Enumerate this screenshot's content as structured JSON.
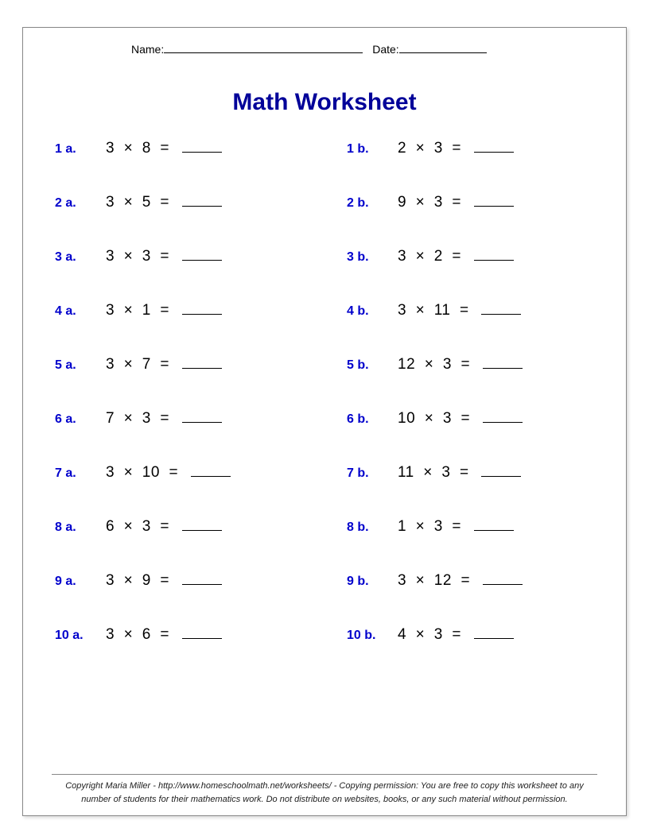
{
  "header": {
    "name_label": "Name:",
    "date_label": "Date:"
  },
  "title": "Math Worksheet",
  "problems": [
    {
      "labelA": "1 a.",
      "a1": "3",
      "a2": "8",
      "labelB": "1 b.",
      "b1": "2",
      "b2": "3"
    },
    {
      "labelA": "2 a.",
      "a1": "3",
      "a2": "5",
      "labelB": "2 b.",
      "b1": "9",
      "b2": "3"
    },
    {
      "labelA": "3 a.",
      "a1": "3",
      "a2": "3",
      "labelB": "3 b.",
      "b1": "3",
      "b2": "2"
    },
    {
      "labelA": "4 a.",
      "a1": "3",
      "a2": "1",
      "labelB": "4 b.",
      "b1": "3",
      "b2": "11"
    },
    {
      "labelA": "5 a.",
      "a1": "3",
      "a2": "7",
      "labelB": "5 b.",
      "b1": "12",
      "b2": "3"
    },
    {
      "labelA": "6 a.",
      "a1": "7",
      "a2": "3",
      "labelB": "6 b.",
      "b1": "10",
      "b2": "3"
    },
    {
      "labelA": "7 a.",
      "a1": "3",
      "a2": "10",
      "labelB": "7 b.",
      "b1": "11",
      "b2": "3"
    },
    {
      "labelA": "8 a.",
      "a1": "6",
      "a2": "3",
      "labelB": "8 b.",
      "b1": "1",
      "b2": "3"
    },
    {
      "labelA": "9 a.",
      "a1": "3",
      "a2": "9",
      "labelB": "9 b.",
      "b1": "3",
      "b2": "12"
    },
    {
      "labelA": "10 a.",
      "a1": "3",
      "a2": "6",
      "labelB": "10 b.",
      "b1": "4",
      "b2": "3"
    }
  ],
  "operator": "×",
  "equals": "=",
  "footer": {
    "line1": "Copyright Maria Miller - http://www.homeschoolmath.net/worksheets/ - Copying permission: You are free to copy this worksheet to any",
    "line2": "number of students for their mathematics work. Do not distribute on websites, books, or any such material without permission."
  },
  "colors": {
    "label_color": "#0000cc",
    "title_color": "#000099",
    "text_color": "#000000",
    "border_color": "#888888"
  }
}
